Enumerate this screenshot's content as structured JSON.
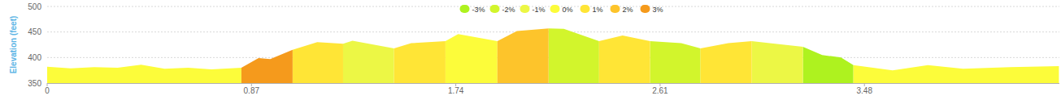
{
  "chart_data": {
    "type": "area",
    "y_label": "Elevation (feet)",
    "x": [
      0,
      0.1,
      0.2,
      0.3,
      0.4,
      0.5,
      0.6,
      0.7,
      0.827,
      0.9,
      0.95,
      1.045,
      1.15,
      1.26,
      1.3,
      1.477,
      1.55,
      1.696,
      1.75,
      1.917,
      2.0,
      2.135,
      2.2,
      2.35,
      2.45,
      2.567,
      2.7,
      2.782,
      2.9,
      3.0,
      3.1,
      3.218,
      3.3,
      3.38,
      3.433,
      3.6,
      3.75,
      3.9,
      4.1,
      4.308
    ],
    "xlim": [
      0,
      4.31
    ],
    "xticks": [
      0,
      0.87,
      1.74,
      2.61,
      3.48
    ],
    "ylim": [
      350,
      500
    ],
    "yticks": [
      350,
      400,
      450,
      500
    ],
    "grid": true,
    "legend": "top",
    "series": [
      {
        "name": "-3%",
        "color": "#aef21f",
        "values": [
          null,
          null,
          null,
          null,
          null,
          null,
          null,
          null,
          null,
          null,
          null,
          null,
          null,
          null,
          null,
          null,
          null,
          null,
          null,
          null,
          null,
          null,
          null,
          null,
          null,
          null,
          null,
          null,
          null,
          null,
          null,
          421,
          405,
          400,
          385,
          null,
          null,
          null,
          null,
          null
        ]
      },
      {
        "name": "-2%",
        "color": "#d2f52c",
        "values": [
          null,
          null,
          null,
          null,
          null,
          null,
          null,
          null,
          null,
          null,
          null,
          null,
          null,
          null,
          null,
          null,
          null,
          null,
          null,
          null,
          null,
          457,
          456,
          432,
          null,
          432,
          428,
          418,
          null,
          null,
          null,
          null,
          null,
          null,
          null,
          null,
          null,
          null,
          null,
          null
        ]
      },
      {
        "name": "-1%",
        "color": "#ecf745",
        "values": [
          null,
          null,
          null,
          null,
          null,
          null,
          null,
          null,
          null,
          null,
          null,
          null,
          null,
          427,
          433,
          418,
          null,
          null,
          null,
          null,
          null,
          null,
          null,
          null,
          null,
          null,
          null,
          null,
          null,
          432,
          427,
          421,
          null,
          null,
          null,
          null,
          null,
          null,
          null,
          null
        ]
      },
      {
        "name": "0%",
        "color": "#fcfc3a",
        "values": [
          382,
          379,
          381,
          380,
          386,
          378,
          380,
          377,
          380,
          null,
          null,
          null,
          null,
          null,
          null,
          null,
          null,
          432,
          446,
          432,
          null,
          null,
          null,
          null,
          null,
          null,
          null,
          null,
          null,
          null,
          null,
          null,
          null,
          null,
          385,
          375,
          385,
          378,
          381,
          383
        ]
      },
      {
        "name": "1%",
        "color": "#ffe536",
        "values": [
          null,
          null,
          null,
          null,
          null,
          null,
          null,
          null,
          null,
          null,
          null,
          415,
          430,
          427,
          null,
          418,
          428,
          432,
          null,
          null,
          null,
          null,
          null,
          432,
          443,
          432,
          null,
          418,
          428,
          432,
          null,
          null,
          null,
          null,
          null,
          null,
          null,
          null,
          null,
          null
        ]
      },
      {
        "name": "2%",
        "color": "#fdc42b",
        "values": [
          null,
          null,
          null,
          null,
          null,
          null,
          null,
          null,
          null,
          null,
          null,
          null,
          null,
          null,
          null,
          null,
          null,
          null,
          null,
          432,
          452,
          457,
          null,
          null,
          null,
          null,
          null,
          null,
          null,
          null,
          null,
          null,
          null,
          null,
          null,
          null,
          null,
          null,
          null,
          null
        ]
      },
      {
        "name": "3%",
        "color": "#f59a1c",
        "values": [
          null,
          null,
          null,
          null,
          null,
          null,
          null,
          null,
          380,
          399,
          397,
          415,
          null,
          null,
          null,
          null,
          null,
          null,
          null,
          null,
          null,
          null,
          null,
          null,
          null,
          null,
          null,
          null,
          null,
          null,
          null,
          null,
          null,
          null,
          null,
          null,
          null,
          null,
          null,
          null
        ]
      }
    ]
  }
}
